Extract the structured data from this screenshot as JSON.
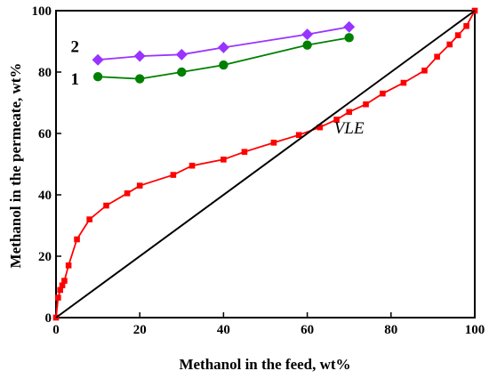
{
  "chart_data": {
    "type": "line",
    "xlabel": "Methanol in the feed, wt%",
    "ylabel": "Methanol in the permeate, wt%",
    "xlim": [
      0,
      100
    ],
    "ylim": [
      0,
      100
    ],
    "xticks": [
      "0",
      "20",
      "40",
      "60",
      "80",
      "100"
    ],
    "yticks": [
      "0",
      "20",
      "40",
      "60",
      "80",
      "100"
    ],
    "grid": false,
    "legend": "none",
    "annotations": [
      {
        "text": "VLE",
        "x": 70,
        "y": 60
      }
    ],
    "series": [
      {
        "name": "1",
        "color": "#008000",
        "marker": "circle",
        "x": [
          10,
          20,
          30,
          40,
          60,
          70
        ],
        "y": [
          78.5,
          77.8,
          80,
          82.3,
          88.8,
          91.2
        ]
      },
      {
        "name": "2",
        "color": "#9933ff",
        "marker": "diamond",
        "x": [
          10,
          20,
          30,
          40,
          60,
          70
        ],
        "y": [
          84,
          85.2,
          85.7,
          88,
          92.3,
          94.7
        ]
      },
      {
        "name": "VLE",
        "color": "#ff0000",
        "marker": "square",
        "x": [
          0,
          0.5,
          1,
          1.5,
          2,
          3,
          5,
          8,
          12,
          17,
          20,
          28,
          32.5,
          40,
          45,
          52,
          58,
          63,
          67,
          70,
          74,
          78,
          83,
          88,
          91,
          94,
          96,
          98,
          100
        ],
        "y": [
          0,
          6.5,
          9,
          10.5,
          12,
          17,
          25.5,
          32,
          36.5,
          40.5,
          43,
          46.5,
          49.5,
          51.5,
          54,
          57,
          59.5,
          62,
          64.5,
          67,
          69.5,
          73,
          76.5,
          80.5,
          85,
          89,
          92,
          95,
          100
        ]
      },
      {
        "name": "",
        "color": "#000000",
        "marker": "none",
        "x": [
          0,
          100
        ],
        "y": [
          0,
          100
        ]
      }
    ],
    "series_labels": [
      {
        "text": "2",
        "x": 4.5,
        "y": 86.5
      },
      {
        "text": "1",
        "x": 4.5,
        "y": 76
      }
    ]
  }
}
